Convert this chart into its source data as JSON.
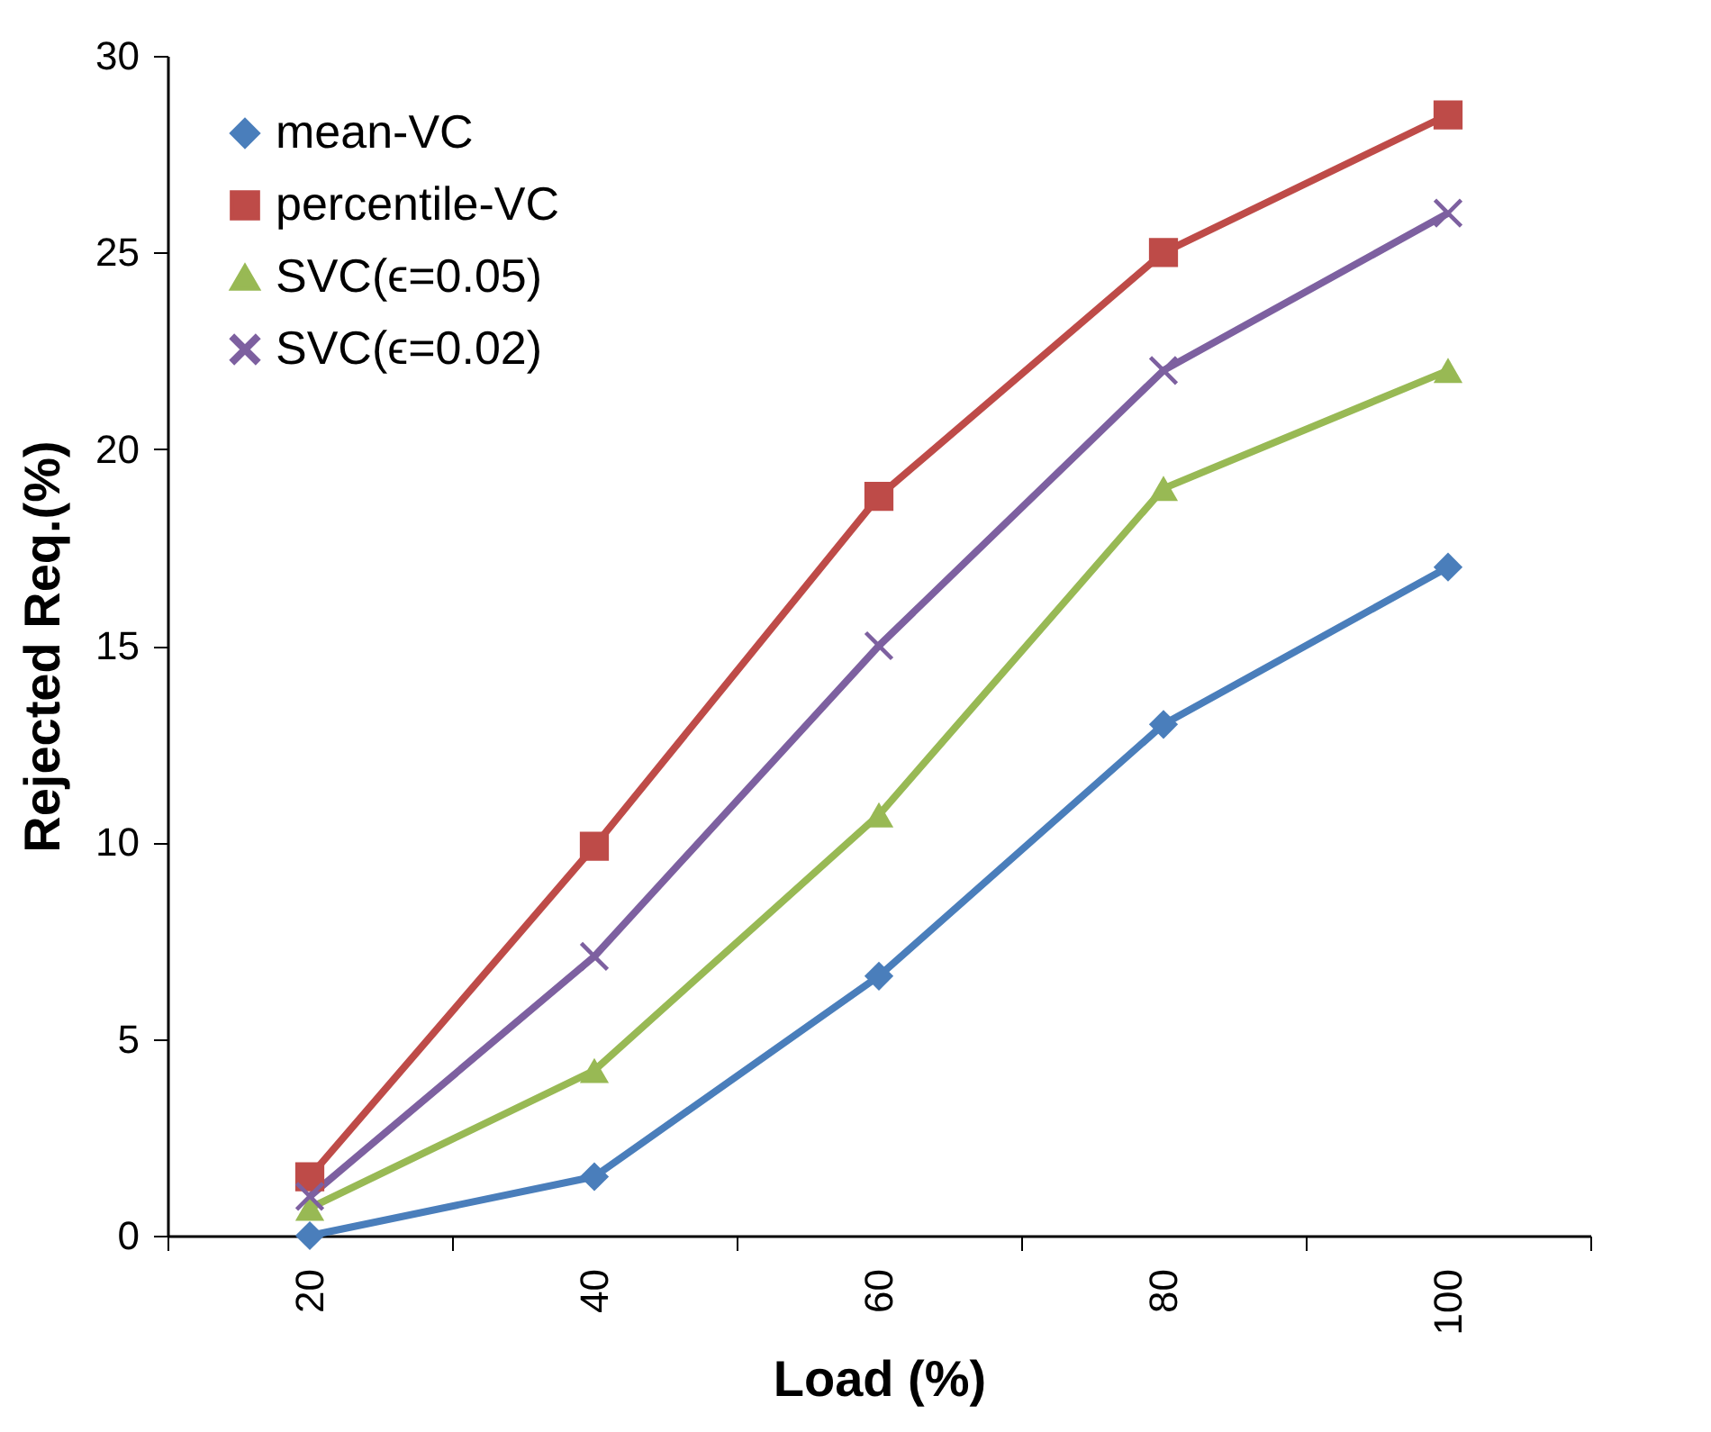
{
  "chart_data": {
    "type": "line",
    "xlabel": "Load (%)",
    "ylabel": "Rejected Req.(%)",
    "categories": [
      "20",
      "40",
      "60",
      "80",
      "100"
    ],
    "ylim": [
      0,
      30
    ],
    "yticks": [
      0,
      5,
      10,
      15,
      20,
      25,
      30
    ],
    "grid": false,
    "legend": "top left",
    "series": [
      {
        "name": "mean-VC",
        "color": "#4a7ebb",
        "marker": "diamond",
        "values": [
          0,
          1.5,
          6.6,
          13,
          17
        ]
      },
      {
        "name": "percentile-VC",
        "color": "#be4b48",
        "marker": "square",
        "values": [
          1.5,
          9.9,
          18.8,
          25,
          28.5
        ]
      },
      {
        "name": "SVC(ϵ=0.05)",
        "color": "#98b954",
        "marker": "triangle",
        "values": [
          0.7,
          4.2,
          10.7,
          19,
          22
        ]
      },
      {
        "name": "SVC(ϵ=0.02)",
        "color": "#7d60a0",
        "marker": "cross",
        "values": [
          1,
          7.1,
          15,
          22,
          26
        ]
      }
    ]
  }
}
